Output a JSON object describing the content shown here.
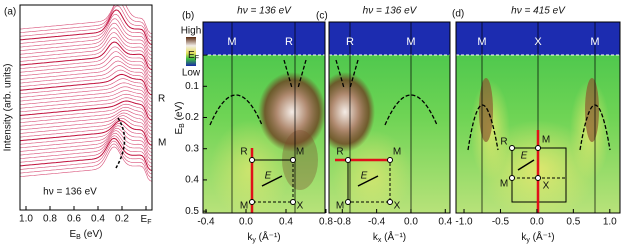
{
  "chart_data": [
    {
      "type": "line",
      "panel": "(a)",
      "ylabel": "Intensity (arb. units)",
      "xlabel": "E_B (eV)",
      "xlim": [
        1.05,
        -0.05
      ],
      "xticks": [
        {
          "value": 1,
          "label": "1.0"
        },
        0.8,
        0.6,
        0.4,
        0.2,
        {
          "value": 0,
          "label": "E_F"
        }
      ],
      "annotations": [
        "hν = 136 eV"
      ],
      "markers": [
        "R",
        "M"
      ]
    },
    {
      "type": "heatmap",
      "panel": "(b)",
      "title": "hν = 136 eV",
      "xlabel": "k_y (Å⁻¹)",
      "ylabel": "E_B (eV)",
      "xlim": [
        -0.43,
        0.79
      ],
      "ylim": [
        0.506,
        -0.106
      ],
      "xticks": [
        -0.4,
        {
          "value": 0,
          "label": "0.0"
        },
        0.4,
        0.8
      ],
      "yticks": [
        {
          "value": 0,
          "label": "E_F"
        },
        0.1,
        0.2,
        0.3,
        0.4,
        0.5
      ],
      "colorbar": [
        "High",
        "Low"
      ],
      "symmetry_labels": [
        "M",
        "R"
      ],
      "bz_labels": [
        "R",
        "M",
        "M",
        "X",
        "E"
      ]
    },
    {
      "type": "heatmap",
      "panel": "(c)",
      "title": "hν = 136 eV",
      "xlabel": "k_x (Å⁻¹)",
      "xlim": [
        -0.955,
        0.455
      ],
      "xticks": [
        -0.8,
        -0.4,
        {
          "value": 0,
          "label": "0.0"
        },
        0.4
      ],
      "symmetry_labels": [
        "R",
        "M"
      ],
      "bz_labels": [
        "R",
        "M",
        "M",
        "X",
        "E"
      ]
    },
    {
      "type": "heatmap",
      "panel": "(d)",
      "title": "hν = 415 eV",
      "xlabel": "k_y (Å⁻¹)",
      "xlim": [
        -1.11,
        1.14
      ],
      "xticks": [
        {
          "value": -1,
          "label": "-1.0"
        },
        -0.5,
        {
          "value": 0,
          "label": "0.0"
        },
        0.5,
        {
          "value": 1,
          "label": "1.0"
        }
      ],
      "symmetry_labels": [
        "M",
        "X",
        "M"
      ],
      "bz_labels": [
        "R",
        "M",
        "M",
        "X",
        "E"
      ]
    }
  ]
}
